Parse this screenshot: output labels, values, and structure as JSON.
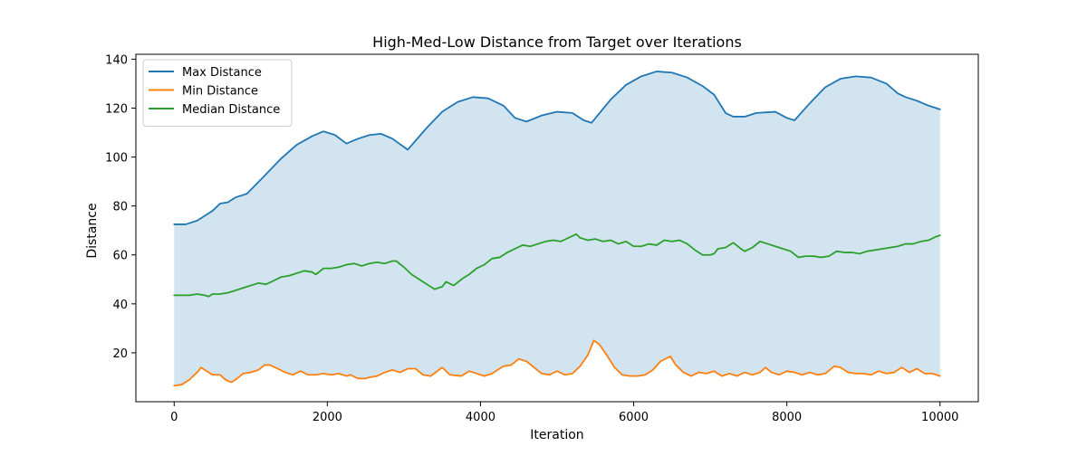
{
  "chart_data": {
    "type": "line",
    "title": "High-Med-Low Distance from Target over Iterations",
    "xlabel": "Iteration",
    "ylabel": "Distance",
    "xlim": [
      -500,
      10500
    ],
    "ylim": [
      0,
      142
    ],
    "xticks": [
      0,
      2000,
      4000,
      6000,
      8000,
      10000
    ],
    "yticks": [
      20,
      40,
      60,
      80,
      100,
      120,
      140
    ],
    "grid": false,
    "legend_position": "upper-left",
    "fill_between": {
      "upper": "Max Distance",
      "lower": "Min Distance",
      "color": "#1f77b4",
      "alpha": 0.2
    },
    "series": [
      {
        "name": "Max Distance",
        "color": "#1f77b4",
        "points": [
          [
            0,
            72.5
          ],
          [
            150,
            72.5
          ],
          [
            300,
            74
          ],
          [
            450,
            77
          ],
          [
            500,
            78
          ],
          [
            600,
            81
          ],
          [
            700,
            81.5
          ],
          [
            800,
            83.5
          ],
          [
            950,
            85
          ],
          [
            1200,
            93
          ],
          [
            1400,
            99.5
          ],
          [
            1600,
            105
          ],
          [
            1800,
            108.5
          ],
          [
            1950,
            110.5
          ],
          [
            2100,
            109
          ],
          [
            2250,
            105.5
          ],
          [
            2400,
            107.5
          ],
          [
            2550,
            109
          ],
          [
            2700,
            109.5
          ],
          [
            2850,
            107.5
          ],
          [
            3050,
            103
          ],
          [
            3300,
            112
          ],
          [
            3500,
            118.5
          ],
          [
            3700,
            122.5
          ],
          [
            3900,
            124.5
          ],
          [
            4100,
            124
          ],
          [
            4300,
            121
          ],
          [
            4450,
            116
          ],
          [
            4600,
            114.5
          ],
          [
            4800,
            117
          ],
          [
            5000,
            118.5
          ],
          [
            5200,
            118
          ],
          [
            5350,
            115
          ],
          [
            5450,
            114
          ],
          [
            5700,
            123.5
          ],
          [
            5900,
            129.5
          ],
          [
            6100,
            133
          ],
          [
            6300,
            135
          ],
          [
            6500,
            134.5
          ],
          [
            6700,
            132.5
          ],
          [
            6900,
            129
          ],
          [
            7050,
            125.5
          ],
          [
            7200,
            118
          ],
          [
            7300,
            116.5
          ],
          [
            7450,
            116.5
          ],
          [
            7600,
            118
          ],
          [
            7850,
            118.5
          ],
          [
            8000,
            116
          ],
          [
            8100,
            115
          ],
          [
            8300,
            122
          ],
          [
            8500,
            128.5
          ],
          [
            8700,
            132
          ],
          [
            8900,
            133
          ],
          [
            9100,
            132.5
          ],
          [
            9300,
            130
          ],
          [
            9450,
            126
          ],
          [
            9550,
            124.5
          ],
          [
            9700,
            123
          ],
          [
            9850,
            121
          ],
          [
            10000,
            119.5
          ]
        ]
      },
      {
        "name": "Min Distance",
        "color": "#ff7f0e",
        "points": [
          [
            0,
            6.5
          ],
          [
            100,
            7
          ],
          [
            200,
            9
          ],
          [
            300,
            12
          ],
          [
            350,
            14
          ],
          [
            400,
            13
          ],
          [
            500,
            11
          ],
          [
            600,
            11
          ],
          [
            650,
            9.5
          ],
          [
            700,
            8.5
          ],
          [
            750,
            8
          ],
          [
            800,
            9
          ],
          [
            900,
            11.5
          ],
          [
            1000,
            12
          ],
          [
            1100,
            13
          ],
          [
            1180,
            15
          ],
          [
            1250,
            15
          ],
          [
            1350,
            13.5
          ],
          [
            1450,
            12
          ],
          [
            1550,
            11
          ],
          [
            1650,
            12.5
          ],
          [
            1750,
            11
          ],
          [
            1850,
            11
          ],
          [
            1950,
            11.5
          ],
          [
            2050,
            11
          ],
          [
            2150,
            11.5
          ],
          [
            2250,
            10.5
          ],
          [
            2300,
            11
          ],
          [
            2400,
            9.5
          ],
          [
            2500,
            9.5
          ],
          [
            2550,
            10
          ],
          [
            2650,
            10.5
          ],
          [
            2750,
            12
          ],
          [
            2850,
            13
          ],
          [
            2950,
            12
          ],
          [
            3050,
            13.5
          ],
          [
            3150,
            13.5
          ],
          [
            3250,
            11
          ],
          [
            3350,
            10.5
          ],
          [
            3500,
            14
          ],
          [
            3600,
            11
          ],
          [
            3750,
            10.5
          ],
          [
            3850,
            12.5
          ],
          [
            3950,
            11.5
          ],
          [
            4050,
            10.5
          ],
          [
            4150,
            11.5
          ],
          [
            4300,
            14.5
          ],
          [
            4400,
            15
          ],
          [
            4500,
            17.5
          ],
          [
            4600,
            16.5
          ],
          [
            4700,
            14
          ],
          [
            4800,
            11.5
          ],
          [
            4900,
            11
          ],
          [
            5000,
            12.5
          ],
          [
            5100,
            11
          ],
          [
            5200,
            11.5
          ],
          [
            5300,
            14.5
          ],
          [
            5400,
            19
          ],
          [
            5480,
            25
          ],
          [
            5550,
            23.5
          ],
          [
            5650,
            19
          ],
          [
            5750,
            14
          ],
          [
            5850,
            11
          ],
          [
            5950,
            10.5
          ],
          [
            6050,
            10.5
          ],
          [
            6150,
            11
          ],
          [
            6250,
            13
          ],
          [
            6350,
            16.5
          ],
          [
            6480,
            18.5
          ],
          [
            6550,
            15
          ],
          [
            6650,
            12
          ],
          [
            6750,
            10.5
          ],
          [
            6850,
            12
          ],
          [
            6950,
            11.5
          ],
          [
            7050,
            12.5
          ],
          [
            7150,
            10.5
          ],
          [
            7250,
            11.5
          ],
          [
            7350,
            10.5
          ],
          [
            7450,
            12
          ],
          [
            7550,
            11
          ],
          [
            7650,
            12
          ],
          [
            7720,
            14
          ],
          [
            7800,
            12
          ],
          [
            7900,
            11
          ],
          [
            8000,
            12.5
          ],
          [
            8100,
            12
          ],
          [
            8200,
            11
          ],
          [
            8300,
            12
          ],
          [
            8400,
            11
          ],
          [
            8500,
            11.5
          ],
          [
            8620,
            14.5
          ],
          [
            8700,
            14
          ],
          [
            8800,
            12
          ],
          [
            8900,
            11.5
          ],
          [
            9000,
            11.5
          ],
          [
            9100,
            11
          ],
          [
            9200,
            12.5
          ],
          [
            9300,
            11.5
          ],
          [
            9400,
            12
          ],
          [
            9500,
            14
          ],
          [
            9600,
            12
          ],
          [
            9700,
            13.5
          ],
          [
            9800,
            11.5
          ],
          [
            9900,
            11.5
          ],
          [
            10000,
            10.5
          ]
        ]
      },
      {
        "name": "Median Distance",
        "color": "#2ca02c",
        "points": [
          [
            0,
            43.5
          ],
          [
            100,
            43.5
          ],
          [
            200,
            43.5
          ],
          [
            300,
            44
          ],
          [
            400,
            43.5
          ],
          [
            450,
            43
          ],
          [
            500,
            44
          ],
          [
            600,
            44
          ],
          [
            700,
            44.5
          ],
          [
            800,
            45.5
          ],
          [
            900,
            46.5
          ],
          [
            1000,
            47.5
          ],
          [
            1100,
            48.5
          ],
          [
            1200,
            48
          ],
          [
            1300,
            49.5
          ],
          [
            1400,
            51
          ],
          [
            1500,
            51.5
          ],
          [
            1600,
            52.5
          ],
          [
            1700,
            53.5
          ],
          [
            1800,
            53
          ],
          [
            1850,
            52
          ],
          [
            1950,
            54.5
          ],
          [
            2050,
            54.5
          ],
          [
            2150,
            55
          ],
          [
            2250,
            56
          ],
          [
            2350,
            56.5
          ],
          [
            2450,
            55.5
          ],
          [
            2550,
            56.5
          ],
          [
            2650,
            57
          ],
          [
            2750,
            56.5
          ],
          [
            2850,
            57.5
          ],
          [
            2900,
            57.5
          ],
          [
            3000,
            55
          ],
          [
            3100,
            52
          ],
          [
            3200,
            50
          ],
          [
            3300,
            48
          ],
          [
            3400,
            46
          ],
          [
            3500,
            47
          ],
          [
            3550,
            49
          ],
          [
            3650,
            47.5
          ],
          [
            3750,
            50
          ],
          [
            3850,
            52
          ],
          [
            3950,
            54.5
          ],
          [
            4050,
            56
          ],
          [
            4150,
            58.5
          ],
          [
            4250,
            59
          ],
          [
            4350,
            61
          ],
          [
            4450,
            62.5
          ],
          [
            4550,
            64
          ],
          [
            4650,
            63.5
          ],
          [
            4750,
            64.5
          ],
          [
            4850,
            65.5
          ],
          [
            4950,
            66
          ],
          [
            5050,
            65.5
          ],
          [
            5150,
            67
          ],
          [
            5250,
            68.5
          ],
          [
            5300,
            67
          ],
          [
            5400,
            66
          ],
          [
            5500,
            66.5
          ],
          [
            5600,
            65.5
          ],
          [
            5700,
            66
          ],
          [
            5800,
            64.5
          ],
          [
            5900,
            65.5
          ],
          [
            6000,
            63.5
          ],
          [
            6100,
            63.5
          ],
          [
            6200,
            64.5
          ],
          [
            6300,
            64
          ],
          [
            6400,
            66
          ],
          [
            6500,
            65.5
          ],
          [
            6600,
            66
          ],
          [
            6700,
            64.5
          ],
          [
            6800,
            62
          ],
          [
            6900,
            60
          ],
          [
            7000,
            60
          ],
          [
            7050,
            60.5
          ],
          [
            7100,
            62.5
          ],
          [
            7200,
            63
          ],
          [
            7300,
            65
          ],
          [
            7400,
            62.5
          ],
          [
            7450,
            61.5
          ],
          [
            7550,
            63
          ],
          [
            7650,
            65.5
          ],
          [
            7750,
            64.5
          ],
          [
            7850,
            63.5
          ],
          [
            7950,
            62.5
          ],
          [
            8050,
            61.5
          ],
          [
            8150,
            59
          ],
          [
            8250,
            59.5
          ],
          [
            8350,
            59.5
          ],
          [
            8450,
            59
          ],
          [
            8550,
            59.5
          ],
          [
            8650,
            61.5
          ],
          [
            8750,
            61
          ],
          [
            8850,
            61
          ],
          [
            8950,
            60.5
          ],
          [
            9050,
            61.5
          ],
          [
            9150,
            62
          ],
          [
            9250,
            62.5
          ],
          [
            9350,
            63
          ],
          [
            9450,
            63.5
          ],
          [
            9550,
            64.5
          ],
          [
            9650,
            64.5
          ],
          [
            9750,
            65.5
          ],
          [
            9850,
            66
          ],
          [
            9950,
            67.5
          ],
          [
            10000,
            68
          ]
        ]
      }
    ]
  }
}
